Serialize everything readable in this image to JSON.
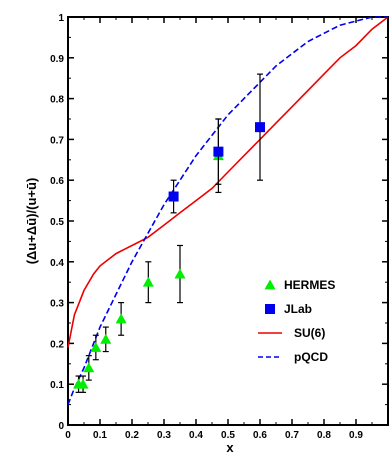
{
  "chart_data": {
    "type": "scatter",
    "xlabel": "x",
    "ylabel": "(Δu+Δū)/(u+ū)",
    "xlim": [
      0,
      1
    ],
    "ylim": [
      0,
      1
    ],
    "x_ticks": [
      "0",
      "0.1",
      "0.2",
      "0.3",
      "0.4",
      "0.5",
      "0.6",
      "0.7",
      "0.8",
      "0.9"
    ],
    "y_ticks": [
      "0",
      "0.1",
      "0.2",
      "0.3",
      "0.4",
      "0.5",
      "0.6",
      "0.7",
      "0.8",
      "0.9",
      "1"
    ],
    "legend_position": "bottom-right",
    "series": [
      {
        "name": "HERMES",
        "kind": "points",
        "marker": "triangle",
        "color": "#00ee00",
        "x": [
          0.033,
          0.047,
          0.065,
          0.087,
          0.118,
          0.166,
          0.251,
          0.35,
          0.47
        ],
        "y": [
          0.1,
          0.1,
          0.14,
          0.19,
          0.21,
          0.26,
          0.35,
          0.37,
          0.66
        ],
        "err": [
          0.02,
          0.02,
          0.03,
          0.03,
          0.03,
          0.04,
          0.05,
          0.07,
          0.09
        ]
      },
      {
        "name": "JLab",
        "kind": "points",
        "marker": "square",
        "color": "#0000ee",
        "x": [
          0.33,
          0.47,
          0.6
        ],
        "y": [
          0.56,
          0.67,
          0.73
        ],
        "err": [
          0.04,
          0.08,
          0.13
        ]
      },
      {
        "name": "SU(6)",
        "kind": "line",
        "style": "solid",
        "color": "#ee0000",
        "x": [
          0.0,
          0.02,
          0.05,
          0.08,
          0.1,
          0.15,
          0.2,
          0.25,
          0.3,
          0.35,
          0.4,
          0.45,
          0.5,
          0.55,
          0.6,
          0.65,
          0.7,
          0.75,
          0.8,
          0.85,
          0.9,
          0.95,
          1.0
        ],
        "y": [
          0.19,
          0.27,
          0.33,
          0.37,
          0.39,
          0.42,
          0.44,
          0.46,
          0.49,
          0.52,
          0.55,
          0.58,
          0.62,
          0.66,
          0.7,
          0.74,
          0.78,
          0.82,
          0.86,
          0.9,
          0.93,
          0.97,
          1.0
        ]
      },
      {
        "name": "pQCD",
        "kind": "line",
        "style": "dashed",
        "color": "#0000ee",
        "x": [
          0.0,
          0.02,
          0.05,
          0.08,
          0.1,
          0.15,
          0.2,
          0.25,
          0.3,
          0.35,
          0.4,
          0.45,
          0.5,
          0.55,
          0.6,
          0.65,
          0.7,
          0.75,
          0.8,
          0.85,
          0.9,
          0.95,
          1.0
        ],
        "y": [
          0.05,
          0.09,
          0.14,
          0.2,
          0.24,
          0.32,
          0.4,
          0.47,
          0.54,
          0.6,
          0.66,
          0.71,
          0.76,
          0.8,
          0.84,
          0.88,
          0.91,
          0.94,
          0.96,
          0.98,
          0.99,
          1.0,
          1.0
        ]
      }
    ]
  }
}
